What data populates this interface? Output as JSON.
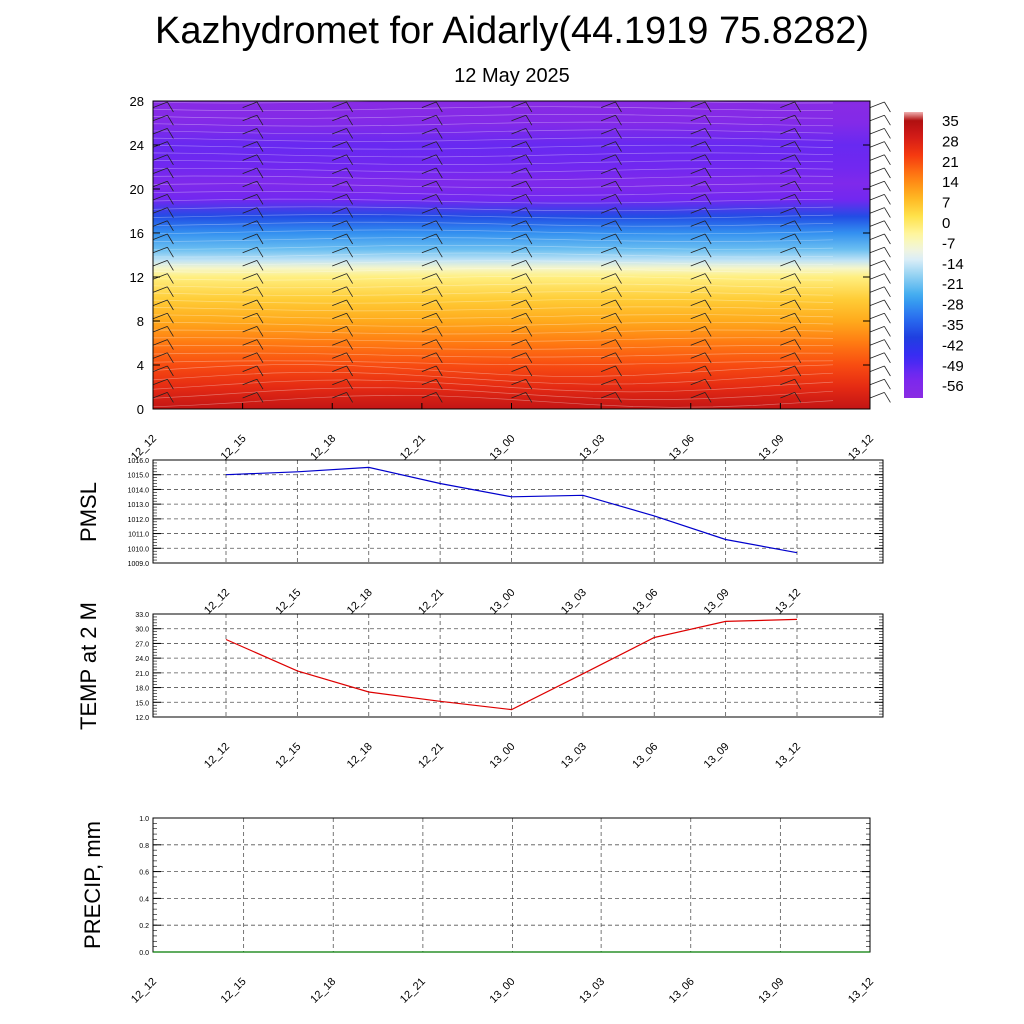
{
  "header": {
    "title": "Kazhydromet for Aidarly(44.1919 75.8282)",
    "date": "12 May 2025"
  },
  "colors": {
    "pmsl_line": "#0000cc",
    "temp_line": "#dd0000",
    "precip_line": "#007a00",
    "grid": "#555555"
  },
  "chart_data": [
    {
      "type": "heatmap",
      "title": "",
      "x_tick_labels": [
        "12_12",
        "12_15",
        "12_18",
        "12_21",
        "13_00",
        "13_03",
        "13_06",
        "13_09",
        "13_12"
      ],
      "y_ticks": [
        0,
        4,
        8,
        12,
        16,
        20,
        24,
        28
      ],
      "ylim": [
        0,
        28
      ],
      "colorbar": {
        "labels": [
          "35",
          "28",
          "21",
          "14",
          "7",
          "0",
          "-7",
          "-14",
          "-21",
          "-28",
          "-35",
          "-42",
          "-49",
          "-56"
        ],
        "values": [
          35,
          28,
          21,
          14,
          7,
          0,
          -7,
          -14,
          -21,
          -28,
          -35,
          -42,
          -49,
          -56
        ]
      },
      "profile": [
        {
          "level": 0,
          "value": 30
        },
        {
          "level": 2,
          "value": 24
        },
        {
          "level": 4,
          "value": 19
        },
        {
          "level": 6,
          "value": 14
        },
        {
          "level": 8,
          "value": 8
        },
        {
          "level": 10,
          "value": 3
        },
        {
          "level": 12,
          "value": -4
        },
        {
          "level": 12.8,
          "value": -10
        },
        {
          "level": 13.5,
          "value": -17
        },
        {
          "level": 14.5,
          "value": -24
        },
        {
          "level": 16,
          "value": -31
        },
        {
          "level": 17.5,
          "value": -40
        },
        {
          "level": 19,
          "value": -55
        },
        {
          "level": 20.5,
          "value": -58
        },
        {
          "level": 22,
          "value": -55
        },
        {
          "level": 24,
          "value": -54
        },
        {
          "level": 26,
          "value": -60
        },
        {
          "level": 28,
          "value": -62
        }
      ]
    },
    {
      "type": "line",
      "ylabel": "PMSL",
      "x_tick_labels": [
        "12_12",
        "12_15",
        "12_18",
        "12_21",
        "13_00",
        "13_03",
        "13_06",
        "13_09",
        "13_12"
      ],
      "y_tick_labels": [
        "1016.0",
        "1015.0",
        "1014.0",
        "1013.0",
        "1012.0",
        "1011.0",
        "1010.0",
        "1009.0"
      ],
      "ylim": [
        1009,
        1016
      ],
      "values": [
        1015.0,
        1015.2,
        1015.5,
        1014.4,
        1013.5,
        1013.6,
        1012.2,
        1010.6,
        1009.7
      ]
    },
    {
      "type": "line",
      "ylabel": "TEMP at 2 M",
      "x_tick_labels": [
        "12_12",
        "12_15",
        "12_18",
        "12_21",
        "13_00",
        "13_03",
        "13_06",
        "13_09",
        "13_12"
      ],
      "y_tick_labels": [
        "33.0",
        "30.0",
        "27.0",
        "24.0",
        "21.0",
        "18.0",
        "15.0",
        "12.0"
      ],
      "ylim": [
        12,
        33
      ],
      "values": [
        27.8,
        21.4,
        17.1,
        15.2,
        13.5,
        20.8,
        28.2,
        31.5,
        31.9
      ]
    },
    {
      "type": "line",
      "ylabel": "PRECIP, mm",
      "x_tick_labels": [
        "12_12",
        "12_15",
        "12_18",
        "12_21",
        "13_00",
        "13_03",
        "13_06",
        "13_09",
        "13_12"
      ],
      "y_tick_labels": [
        "1.0",
        "0.8",
        "0.6",
        "0.4",
        "0.2",
        "0.0"
      ],
      "ylim": [
        0,
        1
      ],
      "values": [
        0,
        0,
        0,
        0,
        0,
        0,
        0,
        0,
        0
      ]
    }
  ]
}
